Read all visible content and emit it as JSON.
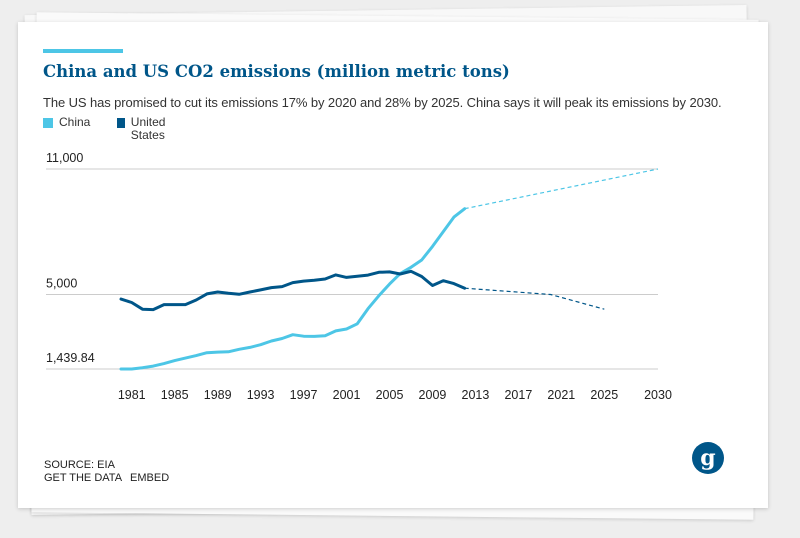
{
  "header": {
    "title": "China and US CO2 emissions (million metric tons)",
    "subtitle": "The US has promised to cut its emissions 17% by 2020 and 28% by 2025. China says it will peak its emissions by 2030."
  },
  "colors": {
    "china": "#4dc6e6",
    "us": "#005689",
    "grid": "#cccccc",
    "accent": "#4dc6e6"
  },
  "footer": {
    "source": "SOURCE: EIA",
    "get_data": "GET THE DATA",
    "embed": "EMBED",
    "logo_glyph": "g"
  },
  "chart_data": {
    "type": "line",
    "title": "China and US CO2 emissions (million metric tons)",
    "y_ticks": [
      {
        "value": 11000,
        "label": "11,000"
      },
      {
        "value": 5000,
        "label": "5,000"
      },
      {
        "value": 1439.84,
        "label": "1,439.84"
      }
    ],
    "ylim": [
      1439.84,
      11000
    ],
    "x_ticks": [
      "1981",
      "1985",
      "1989",
      "1993",
      "1997",
      "2001",
      "2005",
      "2009",
      "2013",
      "2017",
      "2021",
      "2025",
      "2030"
    ],
    "grid": "horizontal",
    "legend_position": "top-left",
    "series": [
      {
        "name": "China",
        "color": "#4dc6e6",
        "x": [
          1980,
          1981,
          1982,
          1983,
          1984,
          1985,
          1986,
          1987,
          1988,
          1989,
          1990,
          1991,
          1992,
          1993,
          1994,
          1995,
          1996,
          1997,
          1998,
          1999,
          2000,
          2001,
          2002,
          2003,
          2004,
          2005,
          2006,
          2007,
          2008,
          2009,
          2010,
          2011,
          2012
        ],
        "values": [
          1440,
          1440,
          1500,
          1580,
          1700,
          1840,
          1960,
          2080,
          2220,
          2250,
          2260,
          2380,
          2470,
          2600,
          2780,
          2900,
          3080,
          3010,
          3000,
          3030,
          3260,
          3350,
          3600,
          4320,
          4940,
          5500,
          6000,
          6300,
          6650,
          7300,
          8000,
          8700,
          9100
        ],
        "projection": {
          "x": [
            2012,
            2030
          ],
          "values": [
            9100,
            11000
          ]
        }
      },
      {
        "name": "United States",
        "color": "#005689",
        "x": [
          1980,
          1981,
          1982,
          1983,
          1984,
          1985,
          1986,
          1987,
          1988,
          1989,
          1990,
          1991,
          1992,
          1993,
          1994,
          1995,
          1996,
          1997,
          1998,
          1999,
          2000,
          2001,
          2002,
          2003,
          2004,
          2005,
          2006,
          2007,
          2008,
          2009,
          2010,
          2011,
          2012
        ],
        "values": [
          4780,
          4620,
          4300,
          4280,
          4520,
          4520,
          4520,
          4740,
          5030,
          5120,
          5060,
          5010,
          5120,
          5220,
          5330,
          5380,
          5570,
          5640,
          5680,
          5740,
          5940,
          5820,
          5870,
          5930,
          6060,
          6080,
          5980,
          6110,
          5860,
          5430,
          5660,
          5520,
          5300
        ],
        "projection": {
          "x": [
            2012,
            2020,
            2025
          ],
          "values": [
            5300,
            5000,
            4300
          ]
        }
      }
    ]
  }
}
